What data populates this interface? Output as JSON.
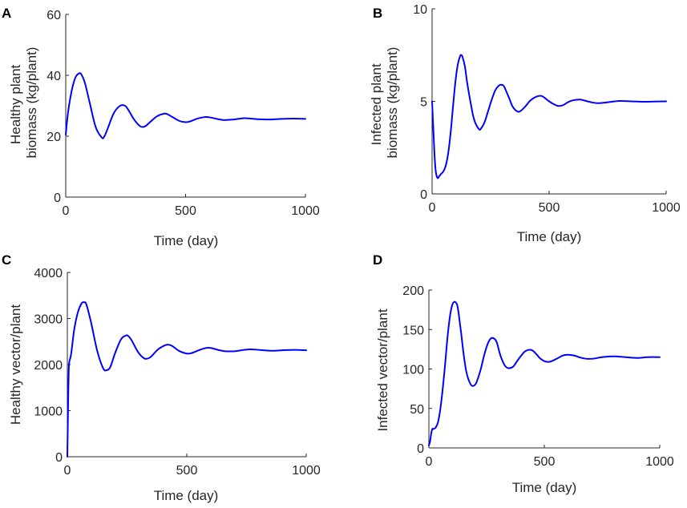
{
  "figure": {
    "colors": {
      "series": "#0000ff",
      "axis": "#262626",
      "panel_letter": "#000000"
    }
  },
  "chart_data": [
    {
      "id": "A",
      "type": "line",
      "panel_letter": "A",
      "title": "",
      "xlabel": "Time (day)",
      "ylabel_lines": [
        "Healthy plant",
        "biomass (kg/plant)"
      ],
      "xlim": [
        0,
        1000
      ],
      "ylim": [
        0,
        60
      ],
      "xticks": [
        0,
        500,
        1000
      ],
      "yticks": [
        0,
        20,
        40,
        60
      ],
      "xtick_labels": [
        "0",
        "500",
        "1000"
      ],
      "ytick_labels": [
        "0",
        "20",
        "40",
        "60"
      ],
      "series": [
        {
          "name": "Healthy plant biomass",
          "x": [
            0,
            10,
            25,
            40,
            55,
            65,
            80,
            100,
            125,
            150,
            160,
            175,
            200,
            225,
            245,
            260,
            285,
            310,
            330,
            350,
            380,
            410,
            425,
            445,
            475,
            500,
            520,
            550,
            580,
            600,
            630,
            660,
            700,
            740,
            770,
            800,
            850,
            900,
            950,
            1000
          ],
          "y": [
            20.5,
            28,
            35,
            39.2,
            40.6,
            40.3,
            37.5,
            31,
            23,
            19.6,
            19.8,
            22.5,
            27.5,
            29.9,
            30.1,
            28.8,
            25.5,
            23.3,
            23.2,
            24.5,
            26.5,
            27.4,
            27.2,
            26.3,
            25,
            24.6,
            24.9,
            25.8,
            26.3,
            26.2,
            25.7,
            25.3,
            25.5,
            25.9,
            25.8,
            25.6,
            25.5,
            25.7,
            25.8,
            25.7
          ]
        }
      ]
    },
    {
      "id": "B",
      "type": "line",
      "panel_letter": "B",
      "title": "",
      "xlabel": "Time (day)",
      "ylabel_lines": [
        "Infected plant",
        "biomass (kg/plant)"
      ],
      "xlim": [
        0,
        1000
      ],
      "ylim": [
        0,
        10
      ],
      "xticks": [
        0,
        500,
        1000
      ],
      "yticks": [
        0,
        5,
        10
      ],
      "xtick_labels": [
        "0",
        "500",
        "1000"
      ],
      "ytick_labels": [
        "0",
        "5",
        "10"
      ],
      "series": [
        {
          "name": "Infected plant biomass",
          "x": [
            0,
            5,
            10,
            15,
            20,
            25,
            30,
            40,
            50,
            60,
            70,
            80,
            90,
            100,
            110,
            120,
            125,
            130,
            140,
            150,
            165,
            180,
            200,
            210,
            225,
            240,
            255,
            270,
            285,
            295,
            305,
            315,
            330,
            345,
            365,
            380,
            400,
            420,
            445,
            465,
            480,
            500,
            520,
            540,
            560,
            580,
            600,
            630,
            650,
            680,
            710,
            750,
            800,
            850,
            900,
            950,
            1000
          ],
          "y": [
            5.0,
            3.6,
            2.2,
            1.3,
            0.95,
            0.85,
            0.95,
            1.1,
            1.25,
            1.6,
            2.3,
            3.4,
            4.8,
            6.1,
            7.0,
            7.45,
            7.5,
            7.4,
            6.9,
            6.0,
            4.9,
            4.0,
            3.5,
            3.55,
            3.9,
            4.5,
            5.1,
            5.6,
            5.85,
            5.9,
            5.85,
            5.6,
            5.15,
            4.7,
            4.45,
            4.5,
            4.75,
            5.05,
            5.25,
            5.3,
            5.2,
            5.0,
            4.85,
            4.75,
            4.8,
            4.95,
            5.05,
            5.1,
            5.05,
            4.95,
            4.9,
            4.95,
            5.02,
            5.0,
            4.98,
            4.99,
            5.0
          ]
        }
      ]
    },
    {
      "id": "C",
      "type": "line",
      "panel_letter": "C",
      "title": "",
      "xlabel": "Time (day)",
      "ylabel_lines": [
        "Healthy vector/plant"
      ],
      "xlim": [
        0,
        1000
      ],
      "ylim": [
        0,
        4000
      ],
      "xticks": [
        0,
        500,
        1000
      ],
      "yticks": [
        0,
        1000,
        2000,
        3000,
        4000
      ],
      "xtick_labels": [
        "0",
        "500",
        "1000"
      ],
      "ytick_labels": [
        "0",
        "1000",
        "2000",
        "3000",
        "4000"
      ],
      "series": [
        {
          "name": "Healthy vector/plant",
          "x": [
            0,
            2,
            4,
            6,
            8,
            10,
            15,
            20,
            30,
            45,
            60,
            70,
            80,
            100,
            125,
            150,
            165,
            180,
            200,
            225,
            245,
            255,
            270,
            295,
            320,
            335,
            350,
            380,
            410,
            425,
            440,
            470,
            500,
            520,
            550,
            580,
            600,
            630,
            660,
            700,
            740,
            770,
            800,
            850,
            900,
            950,
            1000
          ],
          "y": [
            0,
            700,
            1400,
            1900,
            2050,
            2100,
            2200,
            2400,
            2800,
            3150,
            3330,
            3350,
            3300,
            2900,
            2300,
            1920,
            1880,
            1950,
            2250,
            2550,
            2630,
            2620,
            2520,
            2280,
            2140,
            2130,
            2170,
            2330,
            2420,
            2430,
            2400,
            2290,
            2240,
            2250,
            2310,
            2360,
            2360,
            2320,
            2290,
            2290,
            2320,
            2330,
            2320,
            2300,
            2310,
            2320,
            2310
          ]
        }
      ]
    },
    {
      "id": "D",
      "type": "line",
      "panel_letter": "D",
      "title": "",
      "xlabel": "Time (day)",
      "ylabel_lines": [
        "Infected vector/plant"
      ],
      "xlim": [
        0,
        1000
      ],
      "ylim": [
        0,
        200
      ],
      "xticks": [
        0,
        500,
        1000
      ],
      "yticks": [
        0,
        50,
        100,
        150,
        200
      ],
      "xtick_labels": [
        "0",
        "500",
        "1000"
      ],
      "ytick_labels": [
        "0",
        "50",
        "100",
        "150",
        "200"
      ],
      "series": [
        {
          "name": "Infected vector/plant",
          "x": [
            0,
            5,
            10,
            15,
            20,
            30,
            40,
            50,
            60,
            70,
            80,
            90,
            100,
            110,
            120,
            125,
            130,
            140,
            150,
            160,
            170,
            185,
            200,
            210,
            225,
            240,
            255,
            270,
            285,
            295,
            305,
            315,
            330,
            345,
            365,
            380,
            400,
            420,
            445,
            465,
            480,
            500,
            520,
            540,
            560,
            580,
            600,
            630,
            650,
            680,
            710,
            750,
            800,
            850,
            900,
            950,
            1000
          ],
          "y": [
            3,
            8,
            18,
            24,
            24,
            26,
            33,
            50,
            75,
            105,
            138,
            164,
            180,
            185,
            183,
            178,
            168,
            145,
            120,
            100,
            88,
            79,
            80,
            86,
            100,
            118,
            132,
            139,
            138,
            133,
            122,
            113,
            104,
            101,
            103,
            109,
            117,
            123,
            124,
            119,
            114,
            110,
            109,
            111,
            114,
            117,
            118,
            117,
            115,
            113,
            113,
            115,
            116,
            115,
            114,
            115,
            115
          ]
        }
      ]
    }
  ]
}
